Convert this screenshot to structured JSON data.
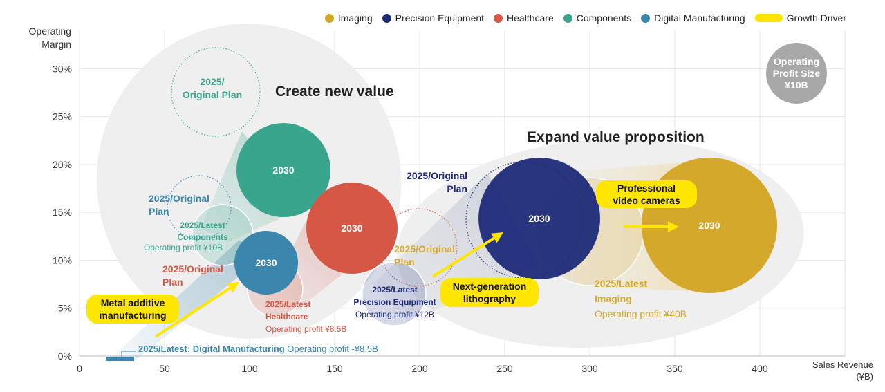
{
  "legend": [
    {
      "label": "Imaging",
      "color": "#d4a82a",
      "shape": "circle"
    },
    {
      "label": "Precision Equipment",
      "color": "#1e2a78",
      "shape": "circle"
    },
    {
      "label": "Healthcare",
      "color": "#d65745",
      "shape": "circle"
    },
    {
      "label": "Components",
      "color": "#3aa58d",
      "shape": "circle"
    },
    {
      "label": "Digital Manufacturing",
      "color": "#3b86ad",
      "shape": "circle"
    },
    {
      "label": "Growth Driver",
      "color": "#ffe600",
      "shape": "pill"
    }
  ],
  "size_key": {
    "line1": "Operating",
    "line2": "Profit Size",
    "line3": "¥10B"
  },
  "chart_data": {
    "type": "scatter",
    "subtype": "bubble",
    "xlabel": [
      "Sales Revenue",
      "(¥B)"
    ],
    "ylabel": [
      "Operating",
      "Margin"
    ],
    "xlim": [
      0,
      450
    ],
    "ylim": [
      0,
      0.34
    ],
    "xticks": [
      0,
      50,
      100,
      150,
      200,
      250,
      300,
      350,
      400
    ],
    "yticks": [
      {
        "v": 0.0,
        "label": "0%"
      },
      {
        "v": 0.05,
        "label": "5%"
      },
      {
        "v": 0.1,
        "label": "10%"
      },
      {
        "v": 0.15,
        "label": "15%"
      },
      {
        "v": 0.2,
        "label": "20%"
      },
      {
        "v": 0.25,
        "label": "25%"
      },
      {
        "v": 0.3,
        "label": "30%"
      }
    ],
    "grid": true,
    "regions": [
      {
        "label": "Create new value"
      },
      {
        "label": "Expand value proposition"
      }
    ],
    "series": [
      {
        "name": "Imaging",
        "color": "#d4a82a",
        "latest": {
          "x": 280,
          "y": 0.12,
          "profit": 40,
          "lines": [
            "2025/Latest",
            "Imaging",
            "Operating profit ¥40B"
          ]
        },
        "plan": null,
        "target": {
          "x": 370,
          "y": 0.14,
          "label": "2030"
        }
      },
      {
        "name": "Precision Equipment",
        "color": "#1e2a78",
        "latest": {
          "x": 185,
          "y": 0.05,
          "profit": 12,
          "lines": [
            "2025/Latest",
            "Precision Equipment",
            "Operating profit ¥12B"
          ]
        },
        "plan": {
          "x": 262,
          "y": 0.15,
          "lines": [
            "2025/Original",
            "Plan"
          ]
        },
        "target": {
          "x": 270,
          "y": 0.15,
          "label": "2030"
        }
      },
      {
        "name": "Healthcare",
        "color": "#d65745",
        "latest": {
          "x": 117,
          "y": 0.07,
          "profit": 8.5,
          "lines": [
            "2025/Latest",
            "Healthcare",
            "Operating profit ¥8.5B"
          ]
        },
        "plan": {
          "x": 200,
          "y": 0.11,
          "lines": [
            "2025/Original",
            "Plan"
          ]
        },
        "target": {
          "x": 160,
          "y": 0.14,
          "label": "2030"
        }
      },
      {
        "name": "Components",
        "color": "#3aa58d",
        "latest": {
          "x": 83,
          "y": 0.13,
          "profit": 10,
          "lines": [
            "2025/Latest",
            "Components",
            "Operating profit ¥10B"
          ]
        },
        "plan": {
          "x": 80,
          "y": 0.28,
          "lines": [
            "2025/",
            "Original Plan"
          ]
        },
        "target": {
          "x": 120,
          "y": 0.2,
          "label": "2030"
        }
      },
      {
        "name": "Digital Manufacturing",
        "color": "#3b86ad",
        "latest": {
          "x": 25,
          "y": 0.0,
          "profit": -8.5,
          "lines": [
            "2025/Latest: Digital Manufacturing",
            "Operating profit -¥8.5B"
          ]
        },
        "plan": {
          "x": 70,
          "y": 0.15,
          "lines": [
            "2025/Original",
            "Plan"
          ]
        },
        "target": {
          "x": 110,
          "y": 0.1,
          "label": "2030"
        }
      }
    ],
    "growth_drivers": [
      {
        "lines": [
          "Metal additive",
          "manufacturing"
        ],
        "series": "Digital Manufacturing"
      },
      {
        "lines": [
          "Next-generation",
          "lithography"
        ],
        "series": "Precision Equipment"
      },
      {
        "lines": [
          "Professional",
          "video cameras"
        ],
        "series": "Imaging"
      }
    ]
  }
}
